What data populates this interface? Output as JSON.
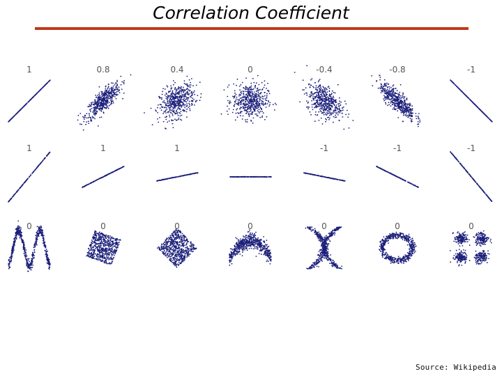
{
  "slide": {
    "title": "Correlation Coefficient",
    "source": "Source: Wikipedia"
  },
  "colors": {
    "title_rule": "#c0391b",
    "points": "#1b1f7a",
    "labels": "#555555"
  },
  "chart_data": {
    "type": "scatter",
    "rows": [
      {
        "panels": [
          {
            "label": "1",
            "shape": "linear-noise",
            "correlation": 1
          },
          {
            "label": "0.8",
            "shape": "linear-noise",
            "correlation": 0.8
          },
          {
            "label": "0.4",
            "shape": "linear-noise",
            "correlation": 0.4
          },
          {
            "label": "0",
            "shape": "linear-noise",
            "correlation": 0
          },
          {
            "label": "-0.4",
            "shape": "linear-noise",
            "correlation": -0.4
          },
          {
            "label": "-0.8",
            "shape": "linear-noise",
            "correlation": -0.8
          },
          {
            "label": "-1",
            "shape": "linear-noise",
            "correlation": -1
          }
        ]
      },
      {
        "panels": [
          {
            "label": "1",
            "shape": "line",
            "correlation": 1,
            "slope": 1.2
          },
          {
            "label": "1",
            "shape": "line",
            "correlation": 1,
            "slope": 0.5
          },
          {
            "label": "1",
            "shape": "line",
            "correlation": 1,
            "slope": 0.2
          },
          {
            "label": "",
            "shape": "line",
            "correlation": 0,
            "slope": 0
          },
          {
            "label": "-1",
            "shape": "line",
            "correlation": -1,
            "slope": -0.2
          },
          {
            "label": "-1",
            "shape": "line",
            "correlation": -1,
            "slope": -0.5
          },
          {
            "label": "-1",
            "shape": "line",
            "correlation": -1,
            "slope": -1.2
          }
        ]
      },
      {
        "panels": [
          {
            "label": "0",
            "shape": "wave",
            "correlation": 0
          },
          {
            "label": "0",
            "shape": "tilted-square",
            "correlation": 0
          },
          {
            "label": "0",
            "shape": "diamond",
            "correlation": 0
          },
          {
            "label": "0",
            "shape": "parabola",
            "correlation": 0
          },
          {
            "label": "0",
            "shape": "x-cross",
            "correlation": 0
          },
          {
            "label": "0",
            "shape": "ring",
            "correlation": 0
          },
          {
            "label": "0",
            "shape": "four-clusters",
            "correlation": 0
          }
        ]
      }
    ]
  }
}
